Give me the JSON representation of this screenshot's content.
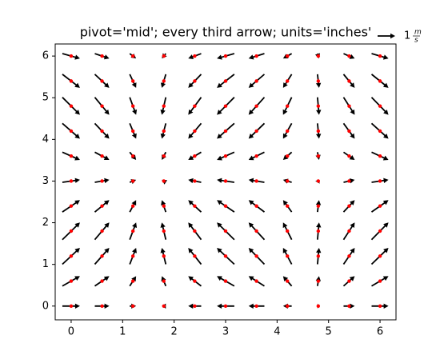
{
  "chart_data": {
    "type": "quiver",
    "title": "pivot='mid'; every third arrow; units='inches'",
    "x": [
      0,
      0.6,
      1.2,
      1.8,
      2.4,
      3.0,
      3.6,
      4.2,
      4.8,
      5.4,
      6.0
    ],
    "y": [
      0,
      0.6,
      1.2,
      1.8,
      2.4,
      3.0,
      3.6,
      4.2,
      4.8,
      5.4,
      6.0
    ],
    "u": [
      1,
      0.825,
      0.362,
      -0.227,
      -0.737,
      -0.99,
      -0.897,
      -0.49,
      0.087,
      0.635,
      0.96
    ],
    "v": [
      0,
      0.565,
      0.932,
      0.974,
      0.675,
      0.141,
      -0.443,
      -0.872,
      -0.996,
      -0.773,
      -0.279
    ],
    "color": "#000000",
    "point_color": "#ff0000",
    "xlim": [
      -0.31,
      6.31
    ],
    "ylim": [
      -0.33,
      6.29
    ],
    "xticks": [
      0,
      1,
      2,
      3,
      4,
      5,
      6
    ],
    "yticks": [
      0,
      1,
      2,
      3,
      4,
      5,
      6
    ],
    "key": {
      "length": 1,
      "numerator": "m",
      "denominator": "s"
    }
  }
}
